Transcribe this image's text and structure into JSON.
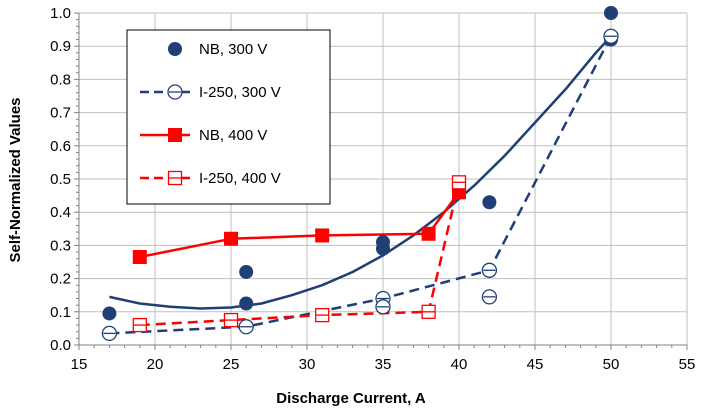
{
  "chart_data": {
    "type": "scatter",
    "xlabel": "Discharge Current, A",
    "ylabel": "Self-Normalized Values",
    "xlim": [
      15,
      55
    ],
    "ylim": [
      0.0,
      1.0
    ],
    "grid": true,
    "legend_position": "top-left",
    "x_ticks": [
      "15",
      "20",
      "25",
      "30",
      "35",
      "40",
      "45",
      "50",
      "55"
    ],
    "y_ticks": [
      "0.0",
      "0.1",
      "0.2",
      "0.3",
      "0.4",
      "0.5",
      "0.6",
      "0.7",
      "0.8",
      "0.9",
      "1.0"
    ],
    "colors": {
      "blue": "#1F3F75",
      "red": "#FF0000",
      "grid": "#BFBFBF",
      "axis": "#808080"
    },
    "series": [
      {
        "name": "NB, 300 V",
        "marker": "filled-circle",
        "line": "none",
        "color": "#1F3F75",
        "points": [
          [
            17,
            0.095
          ],
          [
            26,
            0.22
          ],
          [
            26,
            0.125
          ],
          [
            35,
            0.31
          ],
          [
            35,
            0.29
          ],
          [
            40,
            0.46
          ],
          [
            42,
            0.43
          ],
          [
            50,
            1.0
          ],
          [
            50,
            0.92
          ]
        ]
      },
      {
        "name": "I-250, 300 V",
        "marker": "open-circle-line",
        "line": "dashed",
        "color": "#1F3F75",
        "points": [
          [
            17,
            0.035
          ],
          [
            26,
            0.055
          ],
          [
            35,
            0.14
          ],
          [
            35,
            0.115
          ],
          [
            42,
            0.225
          ],
          [
            42,
            0.145
          ],
          [
            50,
            0.93
          ]
        ]
      },
      {
        "name": "NB, 400 V",
        "marker": "filled-square",
        "line": "solid",
        "color": "#FF0000",
        "points": [
          [
            19,
            0.265
          ],
          [
            25,
            0.32
          ],
          [
            31,
            0.33
          ],
          [
            38,
            0.335
          ],
          [
            40,
            0.46
          ]
        ]
      },
      {
        "name": "I-250, 400 V",
        "marker": "open-square",
        "line": "dashed",
        "color": "#FF0000",
        "points": [
          [
            19,
            0.06
          ],
          [
            25,
            0.075
          ],
          [
            31,
            0.09
          ],
          [
            38,
            0.1
          ],
          [
            40,
            0.49
          ]
        ]
      }
    ],
    "trendline": {
      "series": "NB, 300 V",
      "type": "polynomial",
      "color": "#1F3F75",
      "points": [
        [
          17,
          0.145
        ],
        [
          19,
          0.125
        ],
        [
          21,
          0.115
        ],
        [
          23,
          0.11
        ],
        [
          25,
          0.113
        ],
        [
          27,
          0.125
        ],
        [
          29,
          0.15
        ],
        [
          31,
          0.18
        ],
        [
          33,
          0.22
        ],
        [
          35,
          0.27
        ],
        [
          37,
          0.33
        ],
        [
          39,
          0.4
        ],
        [
          41,
          0.48
        ],
        [
          43,
          0.57
        ],
        [
          45,
          0.67
        ],
        [
          47,
          0.77
        ],
        [
          49,
          0.88
        ],
        [
          50,
          0.93
        ]
      ]
    }
  }
}
